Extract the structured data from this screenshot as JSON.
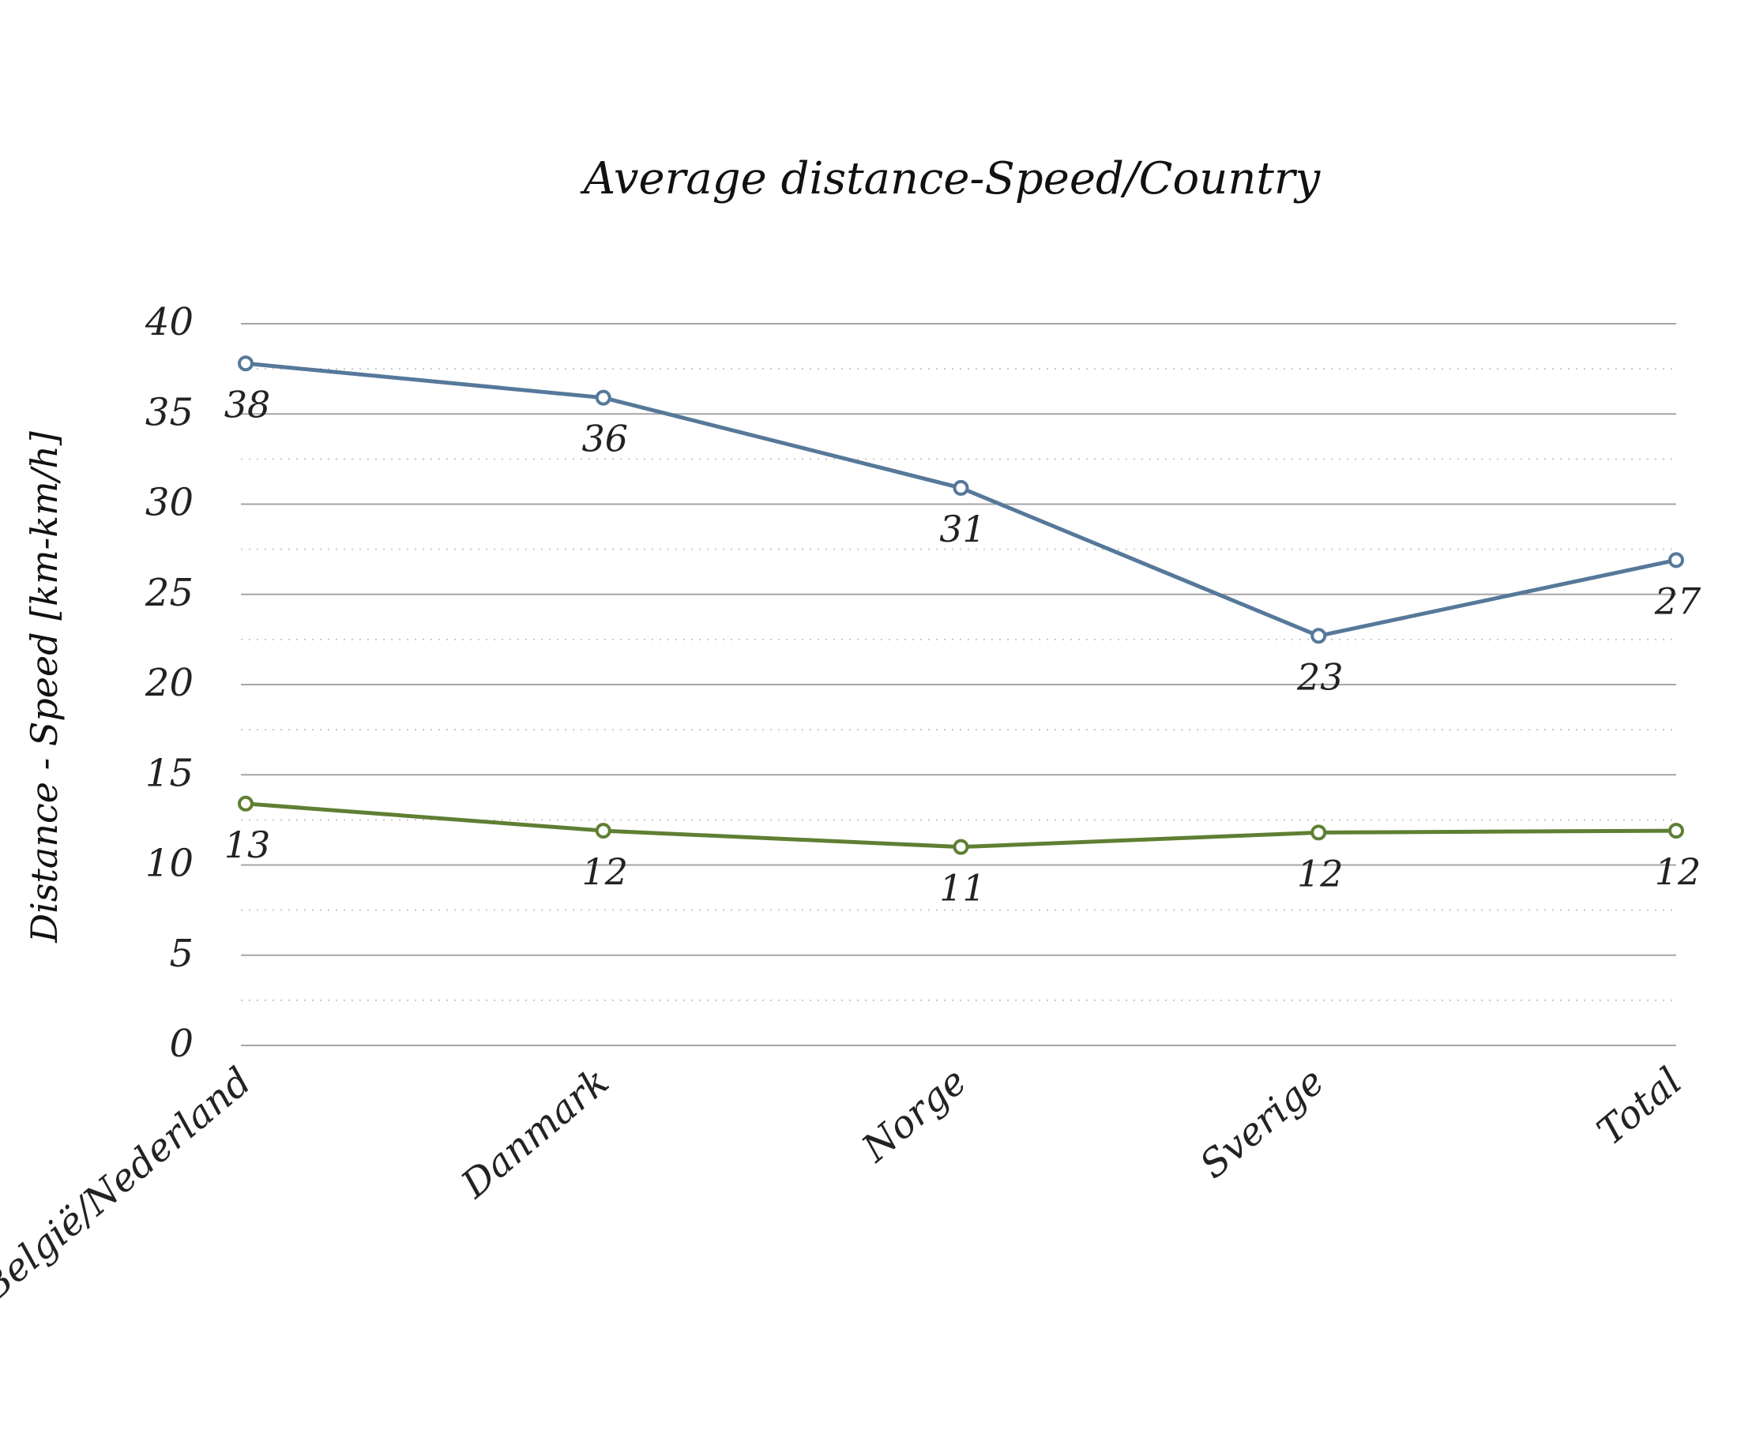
{
  "chart_data": {
    "type": "line",
    "title": "Average distance-Speed/Country",
    "xlabel": "",
    "ylabel": "Distance - Speed [km-km/h]",
    "categories": [
      "België/Nederland",
      "Danmark",
      "Norge",
      "Sverige",
      "Total"
    ],
    "ylim": [
      0,
      40
    ],
    "yticks": [
      "0",
      "5",
      "10",
      "15",
      "20",
      "25",
      "30",
      "35",
      "40"
    ],
    "grid": true,
    "legend": "none",
    "series": [
      {
        "values": [
          37.8,
          35.9,
          30.9,
          22.7,
          26.9
        ],
        "labels": [
          "38",
          "36",
          "31",
          "23",
          "27"
        ],
        "color": "#56789a"
      },
      {
        "values": [
          13.4,
          11.9,
          11.0,
          11.8,
          11.9
        ],
        "labels": [
          "13",
          "12",
          "11",
          "12",
          "12"
        ],
        "color": "#5f7f33"
      }
    ]
  }
}
